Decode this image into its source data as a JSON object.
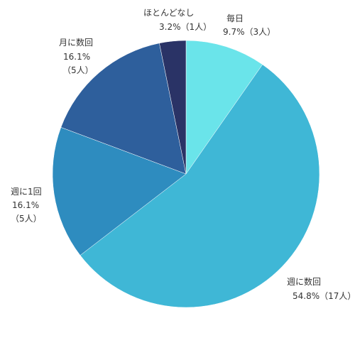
{
  "chart_data": {
    "type": "pie",
    "start_angle_deg": 0,
    "direction": "clockwise",
    "slices": [
      {
        "label": "毎日",
        "value": 9.7,
        "value_text": "9.7%（3人）",
        "color": "#6ae4ea"
      },
      {
        "label": "週に数回",
        "value": 54.8,
        "value_text": "54.8%（17人）",
        "color": "#3fb7d6"
      },
      {
        "label": "週に1回",
        "value": 16.1,
        "value_text": "16.1%",
        "count_text": "（5人）",
        "color": "#2e8cbf"
      },
      {
        "label": "月に数回",
        "value": 16.1,
        "value_text": "16.1%",
        "count_text": "（5人）",
        "color": "#2e5f9c"
      },
      {
        "label": "ほとんどなし",
        "value": 3.2,
        "value_text": "3.2%（1人）",
        "color": "#2a3366"
      }
    ]
  }
}
